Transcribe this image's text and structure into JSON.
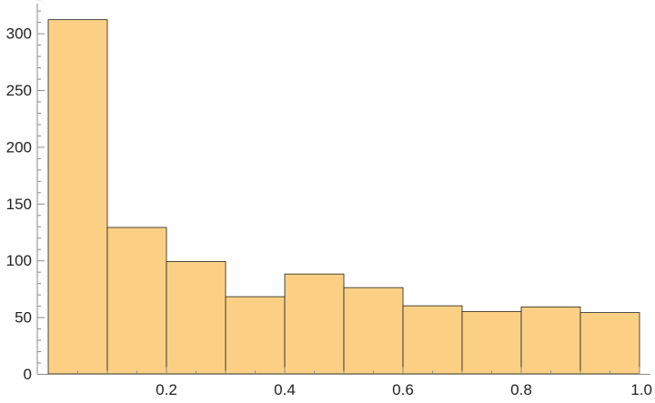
{
  "chart_data": {
    "type": "bar",
    "subtype": "histogram",
    "title": "",
    "xlabel": "",
    "ylabel": "",
    "bins": [
      {
        "start": 0.0,
        "end": 0.1,
        "count": 312
      },
      {
        "start": 0.1,
        "end": 0.2,
        "count": 129
      },
      {
        "start": 0.2,
        "end": 0.3,
        "count": 99
      },
      {
        "start": 0.3,
        "end": 0.4,
        "count": 68
      },
      {
        "start": 0.4,
        "end": 0.5,
        "count": 88
      },
      {
        "start": 0.5,
        "end": 0.6,
        "count": 76
      },
      {
        "start": 0.6,
        "end": 0.7,
        "count": 60
      },
      {
        "start": 0.7,
        "end": 0.8,
        "count": 55
      },
      {
        "start": 0.8,
        "end": 0.9,
        "count": 59
      },
      {
        "start": 0.9,
        "end": 1.0,
        "count": 54
      }
    ],
    "xlim": [
      0.0,
      1.0
    ],
    "ylim": [
      0,
      330
    ],
    "x_ticks": [
      {
        "value": 0.2,
        "label": "0.2"
      },
      {
        "value": 0.4,
        "label": "0.4"
      },
      {
        "value": 0.6,
        "label": "0.6"
      },
      {
        "value": 0.8,
        "label": "0.8"
      },
      {
        "value": 1.0,
        "label": "1.0"
      }
    ],
    "y_ticks": [
      {
        "value": 0,
        "label": "0"
      },
      {
        "value": 50,
        "label": "50"
      },
      {
        "value": 100,
        "label": "100"
      },
      {
        "value": 150,
        "label": "150"
      },
      {
        "value": 200,
        "label": "200"
      },
      {
        "value": 250,
        "label": "250"
      },
      {
        "value": 300,
        "label": "300"
      }
    ],
    "grid": false,
    "colors": {
      "bar_fill": "#fbd084",
      "bar_edge": "#222222",
      "axis": "#8a8a8a"
    }
  }
}
